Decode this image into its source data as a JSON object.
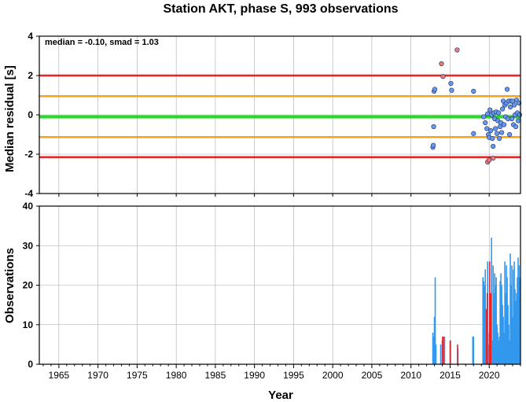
{
  "chart_data": [
    {
      "type": "scatter",
      "title": "Station AKT, phase S, 993 observations",
      "ylabel": "Median residual [s]",
      "annotation": "median = -0.10, smad = 1.03",
      "xlim": [
        1962.5,
        2024
      ],
      "ylim": [
        -4,
        4
      ],
      "yticks": [
        4,
        2,
        0,
        -2,
        -4
      ],
      "grid": true,
      "reference_lines": [
        {
          "y": 2.0,
          "color": "#ee2222"
        },
        {
          "y": 0.95,
          "color": "#f4a21c"
        },
        {
          "y": -0.1,
          "color": "#22dd22"
        },
        {
          "y": -1.13,
          "color": "#f4a21c"
        },
        {
          "y": -2.15,
          "color": "#ee2222"
        }
      ],
      "series": [
        {
          "color": "#6699ee",
          "points": [
            [
              2012.8,
              -1.65
            ],
            [
              2012.85,
              -1.55
            ],
            [
              2012.9,
              -0.6
            ],
            [
              2012.95,
              1.2
            ],
            [
              2013.05,
              1.3
            ],
            [
              2015.1,
              1.6
            ],
            [
              2015.2,
              1.25
            ],
            [
              2018.0,
              1.2
            ],
            [
              2018.0,
              -0.95
            ],
            [
              2019.3,
              -0.1
            ],
            [
              2019.5,
              -0.4
            ],
            [
              2019.7,
              -0.7
            ],
            [
              2019.8,
              0.05
            ],
            [
              2019.9,
              -1.0
            ],
            [
              2020.0,
              -1.15
            ],
            [
              2020.1,
              0.25
            ],
            [
              2020.2,
              -0.8
            ],
            [
              2020.3,
              0.0
            ],
            [
              2020.4,
              -1.2
            ],
            [
              2020.5,
              -1.6
            ],
            [
              2020.6,
              0.1
            ],
            [
              2020.7,
              -0.2
            ],
            [
              2020.8,
              -0.7
            ],
            [
              2020.9,
              0.15
            ],
            [
              2021.0,
              -0.95
            ],
            [
              2021.1,
              -0.3
            ],
            [
              2021.2,
              0.1
            ],
            [
              2021.3,
              -1.2
            ],
            [
              2021.4,
              -0.6
            ],
            [
              2021.5,
              -0.4
            ],
            [
              2021.6,
              -0.9
            ],
            [
              2021.7,
              0.3
            ],
            [
              2021.8,
              0.7
            ],
            [
              2021.9,
              -0.5
            ],
            [
              2022.0,
              0.5
            ],
            [
              2022.1,
              -0.1
            ],
            [
              2022.2,
              0.6
            ],
            [
              2022.3,
              1.3
            ],
            [
              2022.4,
              -0.2
            ],
            [
              2022.5,
              0.7
            ],
            [
              2022.6,
              -1.0
            ],
            [
              2022.7,
              0.4
            ],
            [
              2022.8,
              0.7
            ],
            [
              2022.9,
              -0.2
            ],
            [
              2023.0,
              0.7
            ],
            [
              2023.1,
              -0.5
            ],
            [
              2023.2,
              0.5
            ],
            [
              2023.3,
              0.0
            ],
            [
              2023.4,
              -0.6
            ],
            [
              2023.5,
              0.75
            ],
            [
              2023.6,
              0.1
            ],
            [
              2023.7,
              -0.3
            ],
            [
              2023.8,
              0.6
            ],
            [
              2023.9,
              0.0
            ]
          ]
        },
        {
          "color": "#ee7777",
          "points": [
            [
              2013.9,
              2.6
            ],
            [
              2014.1,
              1.95
            ],
            [
              2015.9,
              3.3
            ],
            [
              2019.8,
              -2.4
            ],
            [
              2020.0,
              -2.3
            ],
            [
              2020.5,
              -2.2
            ]
          ]
        }
      ]
    },
    {
      "type": "bar",
      "ylabel": "Observations",
      "xlabel": "Year",
      "xlim": [
        1962.5,
        2024
      ],
      "ylim": [
        0,
        40
      ],
      "yticks": [
        40,
        30,
        20,
        10,
        0
      ],
      "xticks": [
        1965,
        1970,
        1975,
        1980,
        1985,
        1990,
        1995,
        2000,
        2005,
        2010,
        2015,
        2020
      ],
      "grid": true,
      "series": [
        {
          "color": "#3399ee",
          "bars": [
            [
              2012.8,
              8
            ],
            [
              2012.9,
              7
            ],
            [
              2013.0,
              12
            ],
            [
              2013.1,
              22
            ],
            [
              2013.2,
              5
            ],
            [
              2013.8,
              5
            ],
            [
              2014.0,
              6
            ],
            [
              2014.3,
              7
            ],
            [
              2015.0,
              6
            ],
            [
              2016.0,
              4
            ],
            [
              2017.9,
              7
            ],
            [
              2018.0,
              7
            ],
            [
              2019.2,
              22
            ],
            [
              2019.3,
              21
            ],
            [
              2019.4,
              20
            ],
            [
              2019.5,
              24
            ],
            [
              2019.6,
              12
            ],
            [
              2019.7,
              10
            ],
            [
              2019.8,
              26
            ],
            [
              2019.9,
              5
            ],
            [
              2020.0,
              8
            ],
            [
              2020.1,
              10
            ],
            [
              2020.2,
              15
            ],
            [
              2020.3,
              32
            ],
            [
              2020.4,
              6
            ],
            [
              2020.5,
              25
            ],
            [
              2020.6,
              18
            ],
            [
              2020.7,
              23
            ],
            [
              2020.8,
              20
            ],
            [
              2020.9,
              22
            ],
            [
              2021.0,
              10
            ],
            [
              2021.1,
              8
            ],
            [
              2021.2,
              6
            ],
            [
              2021.3,
              7
            ],
            [
              2021.4,
              21
            ],
            [
              2021.5,
              23
            ],
            [
              2021.6,
              20
            ],
            [
              2021.7,
              15
            ],
            [
              2021.8,
              12
            ],
            [
              2021.9,
              8
            ],
            [
              2022.0,
              26
            ],
            [
              2022.1,
              18
            ],
            [
              2022.2,
              25
            ],
            [
              2022.3,
              22
            ],
            [
              2022.4,
              15
            ],
            [
              2022.5,
              10
            ],
            [
              2022.6,
              6
            ],
            [
              2022.7,
              28
            ],
            [
              2022.8,
              20
            ],
            [
              2022.9,
              25
            ],
            [
              2023.0,
              12
            ],
            [
              2023.1,
              24
            ],
            [
              2023.2,
              26
            ],
            [
              2023.3,
              19
            ],
            [
              2023.4,
              16
            ],
            [
              2023.5,
              18
            ],
            [
              2023.6,
              22
            ],
            [
              2023.7,
              27
            ],
            [
              2023.8,
              25
            ],
            [
              2023.9,
              22
            ]
          ]
        },
        {
          "color": "#ee2222",
          "bars": [
            [
              2014.05,
              7
            ],
            [
              2014.15,
              7
            ],
            [
              2015.05,
              6
            ],
            [
              2015.95,
              5
            ],
            [
              2019.65,
              14
            ],
            [
              2019.75,
              18
            ],
            [
              2020.05,
              26
            ],
            [
              2020.2,
              18
            ]
          ]
        }
      ]
    }
  ]
}
